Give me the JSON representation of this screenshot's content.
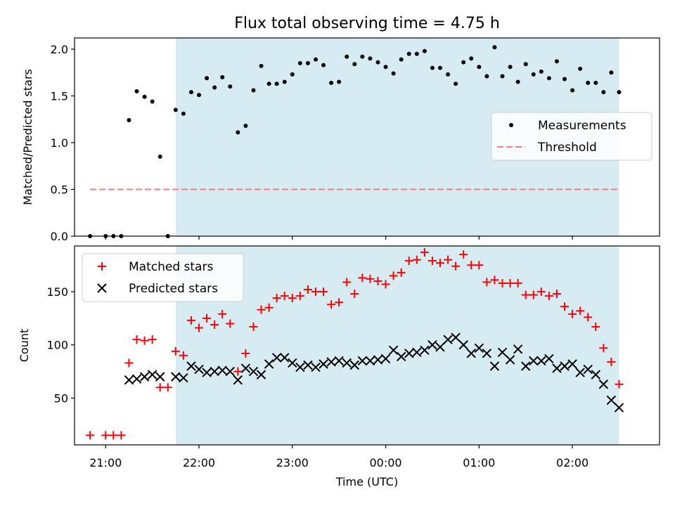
{
  "chart_data": {
    "type": "scatter",
    "title": "Flux total observing time = 4.75 h",
    "xlabel": "Time (UTC)",
    "x_ticks": [
      "21:00",
      "22:00",
      "23:00",
      "00:00",
      "01:00",
      "02:00"
    ],
    "x_range": [
      "20:40",
      "02:56"
    ],
    "shaded_interval": [
      "21:45",
      "02:30"
    ],
    "shade_color": "#add8e6",
    "panels": [
      {
        "name": "ratio",
        "ylabel": "Matched/Predicted stars",
        "ylim": [
          0,
          2.12
        ],
        "y_ticks": [
          0.0,
          0.5,
          1.0,
          1.5,
          2.0
        ],
        "legend_position": "center-right",
        "series": [
          {
            "name": "Measurements",
            "marker": "dot",
            "color": "#000000",
            "points": [
              [
                "20:50",
                0.0
              ],
              [
                "21:00",
                0.0
              ],
              [
                "21:05",
                0.0
              ],
              [
                "21:10",
                0.0
              ],
              [
                "21:15",
                1.24
              ],
              [
                "21:20",
                1.55
              ],
              [
                "21:25",
                1.49
              ],
              [
                "21:30",
                1.44
              ],
              [
                "21:35",
                0.85
              ],
              [
                "21:40",
                0.0
              ],
              [
                "21:45",
                1.35
              ],
              [
                "21:50",
                1.31
              ],
              [
                "21:55",
                1.54
              ],
              [
                "22:00",
                1.51
              ],
              [
                "22:05",
                1.69
              ],
              [
                "22:10",
                1.59
              ],
              [
                "22:15",
                1.7
              ],
              [
                "22:20",
                1.6
              ],
              [
                "22:25",
                1.11
              ],
              [
                "22:30",
                1.18
              ],
              [
                "22:35",
                1.56
              ],
              [
                "22:40",
                1.82
              ],
              [
                "22:45",
                1.63
              ],
              [
                "22:50",
                1.63
              ],
              [
                "22:55",
                1.65
              ],
              [
                "23:00",
                1.73
              ],
              [
                "23:05",
                1.85
              ],
              [
                "23:10",
                1.85
              ],
              [
                "23:15",
                1.89
              ],
              [
                "23:20",
                1.83
              ],
              [
                "23:25",
                1.64
              ],
              [
                "23:30",
                1.65
              ],
              [
                "23:35",
                1.92
              ],
              [
                "23:40",
                1.84
              ],
              [
                "23:45",
                1.92
              ],
              [
                "23:50",
                1.9
              ],
              [
                "23:55",
                1.86
              ],
              [
                "00:00",
                1.81
              ],
              [
                "00:05",
                1.74
              ],
              [
                "00:10",
                1.89
              ],
              [
                "00:15",
                1.95
              ],
              [
                "00:20",
                1.95
              ],
              [
                "00:25",
                1.98
              ],
              [
                "00:30",
                1.8
              ],
              [
                "00:35",
                1.8
              ],
              [
                "00:40",
                1.73
              ],
              [
                "00:45",
                1.63
              ],
              [
                "00:50",
                1.86
              ],
              [
                "00:55",
                1.9
              ],
              [
                "01:00",
                1.81
              ],
              [
                "01:05",
                1.71
              ],
              [
                "01:10",
                2.02
              ],
              [
                "01:15",
                1.71
              ],
              [
                "01:20",
                1.81
              ],
              [
                "01:25",
                1.65
              ],
              [
                "01:30",
                1.84
              ],
              [
                "01:35",
                1.73
              ],
              [
                "01:40",
                1.76
              ],
              [
                "01:45",
                1.69
              ],
              [
                "01:50",
                1.87
              ],
              [
                "01:55",
                1.68
              ],
              [
                "02:00",
                1.56
              ],
              [
                "02:05",
                1.79
              ],
              [
                "02:10",
                1.64
              ],
              [
                "02:15",
                1.64
              ],
              [
                "02:20",
                1.54
              ],
              [
                "02:25",
                1.75
              ],
              [
                "02:30",
                1.54
              ]
            ]
          },
          {
            "name": "Threshold",
            "marker": "dashed-line",
            "color": "#f08080",
            "points": [
              [
                "20:50",
                0.5
              ],
              [
                "02:30",
                0.5
              ]
            ]
          }
        ]
      },
      {
        "name": "counts",
        "ylabel": "Count",
        "ylim": [
          6,
          193
        ],
        "y_ticks": [
          50,
          100,
          150
        ],
        "legend_position": "top-left",
        "series": [
          {
            "name": "Matched stars",
            "marker": "plus",
            "color": "#ff0000",
            "points": [
              [
                "20:50",
                15
              ],
              [
                "21:00",
                15
              ],
              [
                "21:05",
                15
              ],
              [
                "21:10",
                15
              ],
              [
                "21:15",
                83
              ],
              [
                "21:20",
                105
              ],
              [
                "21:25",
                104
              ],
              [
                "21:30",
                105
              ],
              [
                "21:35",
                60
              ],
              [
                "21:40",
                60
              ],
              [
                "21:45",
                94
              ],
              [
                "21:50",
                90
              ],
              [
                "21:55",
                123
              ],
              [
                "22:00",
                116
              ],
              [
                "22:05",
                125
              ],
              [
                "22:10",
                119
              ],
              [
                "22:15",
                129
              ],
              [
                "22:20",
                120
              ],
              [
                "22:25",
                75
              ],
              [
                "22:30",
                92
              ],
              [
                "22:35",
                117
              ],
              [
                "22:40",
                133
              ],
              [
                "22:45",
                135
              ],
              [
                "22:50",
                144
              ],
              [
                "22:55",
                146
              ],
              [
                "23:00",
                144
              ],
              [
                "23:05",
                146
              ],
              [
                "23:10",
                152
              ],
              [
                "23:15",
                150
              ],
              [
                "23:20",
                150
              ],
              [
                "23:25",
                138
              ],
              [
                "23:30",
                140
              ],
              [
                "23:35",
                159
              ],
              [
                "23:40",
                148
              ],
              [
                "23:45",
                163
              ],
              [
                "23:50",
                162
              ],
              [
                "23:55",
                160
              ],
              [
                "00:00",
                157
              ],
              [
                "00:05",
                165
              ],
              [
                "00:10",
                168
              ],
              [
                "00:15",
                179
              ],
              [
                "00:20",
                180
              ],
              [
                "00:25",
                187
              ],
              [
                "00:30",
                179
              ],
              [
                "00:35",
                177
              ],
              [
                "00:40",
                180
              ],
              [
                "00:45",
                174
              ],
              [
                "00:50",
                185
              ],
              [
                "00:55",
                175
              ],
              [
                "01:00",
                175
              ],
              [
                "01:05",
                159
              ],
              [
                "01:10",
                161
              ],
              [
                "01:15",
                158
              ],
              [
                "01:20",
                158
              ],
              [
                "01:25",
                158
              ],
              [
                "01:30",
                147
              ],
              [
                "01:35",
                147
              ],
              [
                "01:40",
                150
              ],
              [
                "01:45",
                146
              ],
              [
                "01:50",
                148
              ],
              [
                "01:55",
                136
              ],
              [
                "02:00",
                129
              ],
              [
                "02:05",
                132
              ],
              [
                "02:10",
                126
              ],
              [
                "02:15",
                117
              ],
              [
                "02:20",
                97
              ],
              [
                "02:25",
                84
              ],
              [
                "02:30",
                63
              ]
            ]
          },
          {
            "name": "Predicted stars",
            "marker": "x",
            "color": "#000000",
            "points": [
              [
                "21:15",
                67
              ],
              [
                "21:20",
                68
              ],
              [
                "21:25",
                70
              ],
              [
                "21:30",
                72
              ],
              [
                "21:35",
                70
              ],
              [
                "21:45",
                70
              ],
              [
                "21:50",
                69
              ],
              [
                "21:55",
                80
              ],
              [
                "22:00",
                77
              ],
              [
                "22:05",
                74
              ],
              [
                "22:10",
                75
              ],
              [
                "22:15",
                76
              ],
              [
                "22:20",
                75
              ],
              [
                "22:25",
                67
              ],
              [
                "22:30",
                78
              ],
              [
                "22:35",
                75
              ],
              [
                "22:40",
                72
              ],
              [
                "22:45",
                82
              ],
              [
                "22:50",
                88
              ],
              [
                "22:55",
                88
              ],
              [
                "23:00",
                83
              ],
              [
                "23:05",
                79
              ],
              [
                "23:10",
                81
              ],
              [
                "23:15",
                79
              ],
              [
                "23:20",
                82
              ],
              [
                "23:25",
                84
              ],
              [
                "23:30",
                85
              ],
              [
                "23:35",
                83
              ],
              [
                "23:40",
                81
              ],
              [
                "23:45",
                85
              ],
              [
                "23:50",
                85
              ],
              [
                "23:55",
                86
              ],
              [
                "00:00",
                87
              ],
              [
                "00:05",
                95
              ],
              [
                "00:10",
                89
              ],
              [
                "00:15",
                92
              ],
              [
                "00:20",
                93
              ],
              [
                "00:25",
                95
              ],
              [
                "00:30",
                100
              ],
              [
                "00:35",
                98
              ],
              [
                "00:40",
                105
              ],
              [
                "00:45",
                107
              ],
              [
                "00:50",
                100
              ],
              [
                "00:55",
                92
              ],
              [
                "01:00",
                97
              ],
              [
                "01:05",
                92
              ],
              [
                "01:10",
                80
              ],
              [
                "01:15",
                93
              ],
              [
                "01:20",
                86
              ],
              [
                "01:25",
                96
              ],
              [
                "01:30",
                80
              ],
              [
                "01:35",
                85
              ],
              [
                "01:40",
                85
              ],
              [
                "01:45",
                87
              ],
              [
                "01:50",
                78
              ],
              [
                "01:55",
                80
              ],
              [
                "02:00",
                82
              ],
              [
                "02:05",
                74
              ],
              [
                "02:10",
                77
              ],
              [
                "02:15",
                72
              ],
              [
                "02:20",
                63
              ],
              [
                "02:25",
                48
              ],
              [
                "02:30",
                41
              ]
            ]
          }
        ]
      }
    ]
  }
}
